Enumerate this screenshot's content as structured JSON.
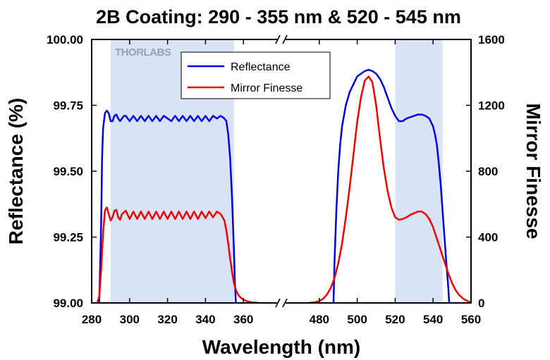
{
  "chart_data": {
    "type": "line",
    "title": "2B Coating: 290 - 355 nm & 520 - 545 nm",
    "xlabel": "Wavelength (nm)",
    "ylabel": "Reflectance (%)",
    "y2label": "Mirror Finesse",
    "watermark": "THORLABS",
    "x_broken_axis": true,
    "segments": [
      {
        "xlim": [
          280,
          380
        ],
        "ticks": [
          280,
          300,
          320,
          340,
          360
        ]
      },
      {
        "xlim": [
          460,
          560
        ],
        "ticks": [
          480,
          500,
          520,
          540,
          560
        ]
      }
    ],
    "x_tick_labels": [
      "280",
      "300",
      "320",
      "340",
      "360",
      "480",
      "500",
      "520",
      "540",
      "560"
    ],
    "ylim": [
      99.0,
      100.0
    ],
    "y_ticks": [
      "99.00",
      "99.25",
      "99.50",
      "99.75",
      "100.00"
    ],
    "y2lim": [
      0,
      1600
    ],
    "y2_ticks": [
      "0",
      "400",
      "800",
      "1200",
      "1600"
    ],
    "shaded_bands": [
      [
        290,
        355
      ],
      [
        520,
        545
      ]
    ],
    "legend": {
      "position": "top-center",
      "entries": [
        "Reflectance",
        "Mirror Finesse"
      ]
    },
    "series": [
      {
        "name": "Reflectance",
        "axis": "left",
        "color": "#0000dd",
        "points": [
          [
            284,
            99.0
          ],
          [
            285,
            99.3
          ],
          [
            285.5,
            99.55
          ],
          [
            286,
            99.66
          ],
          [
            287,
            99.72
          ],
          [
            288,
            99.73
          ],
          [
            289,
            99.72
          ],
          [
            290,
            99.69
          ],
          [
            291,
            99.69
          ],
          [
            292,
            99.71
          ],
          [
            293,
            99.715
          ],
          [
            294,
            99.7
          ],
          [
            295,
            99.69
          ],
          [
            296,
            99.7
          ],
          [
            297,
            99.71
          ],
          [
            298,
            99.71
          ],
          [
            300,
            99.69
          ],
          [
            302,
            99.71
          ],
          [
            304,
            99.69
          ],
          [
            306,
            99.71
          ],
          [
            308,
            99.69
          ],
          [
            310,
            99.71
          ],
          [
            312,
            99.69
          ],
          [
            314,
            99.71
          ],
          [
            316,
            99.69
          ],
          [
            318,
            99.71
          ],
          [
            320,
            99.7
          ],
          [
            322,
            99.69
          ],
          [
            324,
            99.71
          ],
          [
            326,
            99.69
          ],
          [
            328,
            99.71
          ],
          [
            330,
            99.69
          ],
          [
            332,
            99.71
          ],
          [
            334,
            99.69
          ],
          [
            336,
            99.71
          ],
          [
            338,
            99.69
          ],
          [
            340,
            99.71
          ],
          [
            342,
            99.69
          ],
          [
            344,
            99.71
          ],
          [
            346,
            99.7
          ],
          [
            348,
            99.71
          ],
          [
            350,
            99.7
          ],
          [
            351,
            99.69
          ],
          [
            352,
            99.64
          ],
          [
            353,
            99.55
          ],
          [
            354,
            99.4
          ],
          [
            355,
            99.2
          ],
          [
            355.5,
            99.08
          ],
          [
            356,
            99.0
          ]
        ],
        "points_segment2": [
          [
            487.5,
            99.0
          ],
          [
            488,
            99.15
          ],
          [
            489,
            99.35
          ],
          [
            490,
            99.5
          ],
          [
            491,
            99.6
          ],
          [
            492,
            99.67
          ],
          [
            494,
            99.75
          ],
          [
            496,
            99.8
          ],
          [
            498,
            99.83
          ],
          [
            500,
            99.86
          ],
          [
            502,
            99.87
          ],
          [
            504,
            99.88
          ],
          [
            506,
            99.885
          ],
          [
            508,
            99.88
          ],
          [
            510,
            99.87
          ],
          [
            512,
            99.85
          ],
          [
            514,
            99.82
          ],
          [
            516,
            99.78
          ],
          [
            518,
            99.74
          ],
          [
            520,
            99.71
          ],
          [
            522,
            99.69
          ],
          [
            524,
            99.69
          ],
          [
            526,
            99.7
          ],
          [
            528,
            99.705
          ],
          [
            530,
            99.71
          ],
          [
            532,
            99.715
          ],
          [
            534,
            99.715
          ],
          [
            536,
            99.71
          ],
          [
            538,
            99.7
          ],
          [
            540,
            99.67
          ],
          [
            541,
            99.64
          ],
          [
            542,
            99.6
          ],
          [
            543,
            99.53
          ],
          [
            544,
            99.45
          ],
          [
            545,
            99.35
          ],
          [
            546,
            99.25
          ],
          [
            547,
            99.15
          ],
          [
            548,
            99.06
          ],
          [
            548.5,
            99.0
          ]
        ]
      },
      {
        "name": "Mirror Finesse",
        "axis": "right",
        "color": "#ee0000",
        "points": [
          [
            283,
            5
          ],
          [
            284,
            40
          ],
          [
            285,
            200
          ],
          [
            286,
            420
          ],
          [
            287,
            560
          ],
          [
            288,
            580
          ],
          [
            289,
            540
          ],
          [
            290,
            500
          ],
          [
            291,
            520
          ],
          [
            292,
            560
          ],
          [
            293,
            565
          ],
          [
            294,
            520
          ],
          [
            295,
            505
          ],
          [
            296,
            540
          ],
          [
            298,
            560
          ],
          [
            300,
            510
          ],
          [
            302,
            555
          ],
          [
            304,
            510
          ],
          [
            306,
            555
          ],
          [
            308,
            510
          ],
          [
            310,
            555
          ],
          [
            312,
            510
          ],
          [
            314,
            555
          ],
          [
            316,
            510
          ],
          [
            318,
            555
          ],
          [
            320,
            510
          ],
          [
            322,
            555
          ],
          [
            324,
            510
          ],
          [
            326,
            555
          ],
          [
            328,
            510
          ],
          [
            330,
            555
          ],
          [
            332,
            510
          ],
          [
            334,
            555
          ],
          [
            336,
            510
          ],
          [
            338,
            555
          ],
          [
            340,
            515
          ],
          [
            342,
            555
          ],
          [
            344,
            520
          ],
          [
            346,
            555
          ],
          [
            348,
            540
          ],
          [
            350,
            500
          ],
          [
            351,
            440
          ],
          [
            352,
            360
          ],
          [
            353,
            270
          ],
          [
            354,
            190
          ],
          [
            355,
            120
          ],
          [
            356,
            80
          ],
          [
            357,
            55
          ],
          [
            358,
            38
          ],
          [
            360,
            20
          ],
          [
            362,
            10
          ],
          [
            364,
            5
          ],
          [
            366,
            2
          ],
          [
            368,
            1
          ]
        ],
        "points_segment2": [
          [
            474,
            0
          ],
          [
            476,
            2
          ],
          [
            478,
            5
          ],
          [
            480,
            12
          ],
          [
            482,
            25
          ],
          [
            484,
            50
          ],
          [
            486,
            90
          ],
          [
            488,
            150
          ],
          [
            490,
            240
          ],
          [
            492,
            360
          ],
          [
            494,
            520
          ],
          [
            496,
            700
          ],
          [
            498,
            900
          ],
          [
            500,
            1100
          ],
          [
            502,
            1250
          ],
          [
            504,
            1350
          ],
          [
            506,
            1375
          ],
          [
            508,
            1340
          ],
          [
            510,
            1200
          ],
          [
            512,
            1000
          ],
          [
            514,
            820
          ],
          [
            516,
            680
          ],
          [
            518,
            580
          ],
          [
            520,
            520
          ],
          [
            522,
            505
          ],
          [
            524,
            510
          ],
          [
            526,
            520
          ],
          [
            528,
            535
          ],
          [
            530,
            545
          ],
          [
            532,
            555
          ],
          [
            534,
            555
          ],
          [
            536,
            540
          ],
          [
            538,
            510
          ],
          [
            540,
            460
          ],
          [
            542,
            390
          ],
          [
            544,
            320
          ],
          [
            546,
            250
          ],
          [
            548,
            180
          ],
          [
            550,
            120
          ],
          [
            552,
            75
          ],
          [
            554,
            45
          ],
          [
            556,
            25
          ],
          [
            558,
            12
          ],
          [
            560,
            5
          ]
        ]
      }
    ]
  }
}
